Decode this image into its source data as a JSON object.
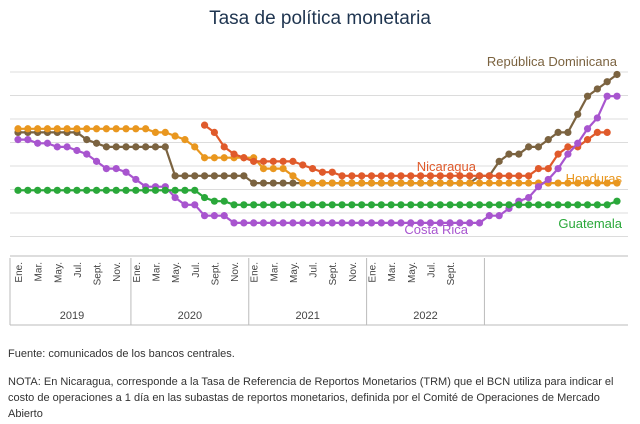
{
  "chart_data": {
    "type": "line",
    "title": "Tasa de política monetaria",
    "x_tick_labels": [
      "Ene.",
      "Mar.",
      "May.",
      "Jul.",
      "Sept.",
      "Nov.",
      "Ene.",
      "Mar.",
      "May.",
      "Jul.",
      "Sept.",
      "Nov.",
      "Ene.",
      "Mar.",
      "May.",
      "Jul.",
      "Sept.",
      "Nov.",
      "Ene.",
      "Mar.",
      "May.",
      "Jul.",
      "Sept."
    ],
    "years": [
      "2019",
      "2020",
      "2021",
      "2022"
    ],
    "grid": true,
    "series": [
      {
        "name": "República Dominicana",
        "color": "#7b6340",
        "values": [
          8.5,
          8.5,
          8.5,
          8.5,
          8.5,
          8.5,
          8.5,
          8.0,
          7.75,
          7.5,
          7.5,
          7.5,
          7.5,
          7.5,
          7.5,
          7.5,
          5.5,
          5.5,
          5.5,
          5.5,
          5.5,
          5.5,
          5.5,
          5.5,
          5.0,
          5.0,
          5.0,
          5.0,
          5.0,
          5.0,
          5.0,
          5.0,
          5.0,
          5.0,
          5.0,
          5.0,
          5.0,
          5.0,
          5.0,
          5.0,
          5.0,
          5.0,
          5.0,
          5.0,
          5.0,
          5.0,
          5.0,
          5.5,
          5.5,
          6.5,
          7.0,
          7.0,
          7.5,
          7.5,
          8.0,
          8.5,
          8.5,
          9.75,
          11.0,
          11.5,
          12.0,
          12.5
        ]
      },
      {
        "name": "Honduras",
        "color": "#e9971f",
        "values": [
          8.75,
          8.75,
          8.75,
          8.75,
          8.75,
          8.75,
          8.75,
          8.75,
          8.75,
          8.75,
          8.75,
          8.75,
          8.75,
          8.75,
          8.5,
          8.5,
          8.25,
          8.0,
          7.5,
          6.75,
          6.75,
          6.75,
          6.75,
          6.75,
          6.75,
          6.0,
          6.0,
          6.0,
          5.5,
          5.0,
          5.0,
          5.0,
          5.0,
          5.0,
          5.0,
          5.0,
          5.0,
          5.0,
          5.0,
          5.0,
          5.0,
          5.0,
          5.0,
          5.0,
          5.0,
          5.0,
          5.0,
          5.0,
          5.0,
          5.0,
          5.0,
          5.0,
          5.0,
          5.0,
          5.0,
          5.0,
          5.0,
          5.0,
          5.0,
          5.0,
          5.0,
          5.0
        ]
      },
      {
        "name": "Nicaragua",
        "color": "#e05a2b",
        "values": [
          null,
          null,
          null,
          null,
          null,
          null,
          null,
          null,
          null,
          null,
          null,
          null,
          null,
          null,
          null,
          null,
          null,
          null,
          null,
          9.0,
          8.5,
          7.5,
          7.0,
          6.75,
          6.5,
          6.5,
          6.5,
          6.5,
          6.5,
          6.25,
          6.0,
          5.75,
          5.75,
          5.5,
          5.5,
          5.5,
          5.5,
          5.5,
          5.5,
          5.5,
          5.5,
          5.5,
          5.5,
          5.5,
          5.5,
          5.5,
          5.5,
          5.5,
          5.5,
          5.5,
          5.5,
          5.5,
          5.5,
          6.0,
          6.0,
          7.0,
          7.5,
          7.5,
          8.0,
          8.5,
          8.5
        ]
      },
      {
        "name": "Costa Rica",
        "color": "#a855cf",
        "values": [
          8.0,
          8.0,
          7.75,
          7.75,
          7.5,
          7.5,
          7.25,
          7.0,
          6.5,
          6.0,
          6.0,
          5.75,
          5.25,
          4.75,
          4.75,
          4.75,
          4.0,
          3.5,
          3.5,
          2.75,
          2.75,
          2.75,
          2.25,
          2.25,
          2.25,
          2.25,
          2.25,
          2.25,
          2.25,
          2.25,
          2.25,
          2.25,
          2.25,
          2.25,
          2.25,
          2.25,
          2.25,
          2.25,
          2.25,
          2.25,
          2.25,
          2.25,
          2.25,
          2.25,
          2.25,
          2.25,
          2.25,
          2.25,
          2.75,
          2.75,
          3.25,
          3.75,
          4.0,
          4.75,
          5.25,
          6.0,
          7.0,
          7.75,
          8.75,
          9.5,
          11.0,
          11.0,
          11.0
        ]
      },
      {
        "name": "Guatemala",
        "color": "#2aa83a",
        "values": [
          4.5,
          4.5,
          4.5,
          4.5,
          4.5,
          4.5,
          4.5,
          4.5,
          4.5,
          4.5,
          4.5,
          4.5,
          4.5,
          4.5,
          4.5,
          4.5,
          4.5,
          4.5,
          4.5,
          4.0,
          3.75,
          3.75,
          3.5,
          3.5,
          3.5,
          3.5,
          3.5,
          3.5,
          3.5,
          3.5,
          3.5,
          3.5,
          3.5,
          3.5,
          3.5,
          3.5,
          3.5,
          3.5,
          3.5,
          3.5,
          3.5,
          3.5,
          3.5,
          3.5,
          3.5,
          3.5,
          3.5,
          3.5,
          3.5,
          3.5,
          3.5,
          3.5,
          3.5,
          3.5,
          3.5,
          3.5,
          3.5,
          3.5,
          3.5,
          3.5,
          3.5,
          3.75,
          4.0,
          4.0,
          4.25,
          4.5
        ]
      }
    ]
  },
  "source": "Fuente: comunicados de los bancos centrales.",
  "note": "NOTA: En Nicaragua, corresponde a la Tasa de Referencia de Reportos Monetarios (TRM) que el BCN utiliza para indicar el costo de operaciones a 1 día en las subastas de reportos monetarios, definida por el Comité de Operaciones de Mercado Abierto"
}
